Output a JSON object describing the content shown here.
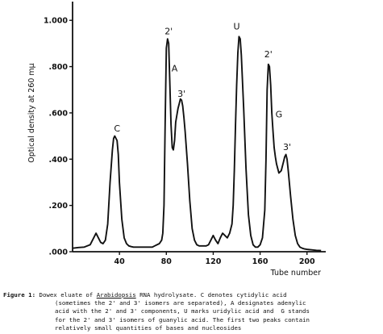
{
  "chart_data": {
    "type": "line",
    "xlabel": "Tube number",
    "ylabel": "Optical density at 260 mμ",
    "xlim": [
      0,
      216
    ],
    "ylim": [
      0,
      1.06
    ],
    "x_ticks": [
      40,
      80,
      120,
      160,
      200
    ],
    "y_ticks": [
      0.0,
      0.2,
      0.4,
      0.6,
      0.8,
      1.0
    ],
    "y_tick_labels": [
      ".000",
      ".200",
      ".400",
      ".600",
      ".800",
      "1.000"
    ],
    "grid": false,
    "series": [
      {
        "x": [
          0,
          5,
          10,
          15,
          18,
          20,
          22,
          24,
          26,
          28,
          30,
          32,
          34,
          35,
          36,
          37,
          38,
          39,
          40,
          42,
          44,
          46,
          48,
          50,
          52,
          56,
          60,
          64,
          68,
          70,
          72,
          74,
          76,
          77,
          78,
          79,
          80,
          81,
          82,
          83,
          84,
          85,
          86,
          87,
          88,
          90,
          91,
          92,
          93,
          94,
          95,
          96,
          98,
          100,
          102,
          104,
          106,
          108,
          110,
          112,
          114,
          116,
          118,
          120,
          122,
          124,
          126,
          128,
          130,
          132,
          134,
          136,
          137,
          138,
          139,
          140,
          141,
          142,
          143,
          144,
          146,
          148,
          150,
          152,
          154,
          156,
          158,
          160,
          162,
          164,
          165,
          166,
          167,
          168,
          169,
          170,
          171,
          172,
          173,
          174,
          175,
          176,
          178,
          180,
          181,
          182,
          183,
          184,
          186,
          188,
          190,
          192,
          194,
          196,
          198,
          200,
          204,
          208,
          212
        ],
        "y": [
          0.015,
          0.018,
          0.02,
          0.03,
          0.06,
          0.08,
          0.06,
          0.04,
          0.035,
          0.05,
          0.12,
          0.3,
          0.44,
          0.49,
          0.5,
          0.49,
          0.48,
          0.42,
          0.3,
          0.14,
          0.06,
          0.035,
          0.025,
          0.022,
          0.02,
          0.02,
          0.02,
          0.02,
          0.02,
          0.025,
          0.03,
          0.035,
          0.05,
          0.08,
          0.2,
          0.55,
          0.88,
          0.92,
          0.9,
          0.72,
          0.55,
          0.45,
          0.44,
          0.48,
          0.56,
          0.62,
          0.64,
          0.66,
          0.655,
          0.63,
          0.58,
          0.52,
          0.38,
          0.22,
          0.1,
          0.05,
          0.03,
          0.025,
          0.025,
          0.025,
          0.025,
          0.03,
          0.05,
          0.07,
          0.05,
          0.035,
          0.06,
          0.08,
          0.07,
          0.06,
          0.08,
          0.12,
          0.2,
          0.35,
          0.55,
          0.72,
          0.86,
          0.93,
          0.92,
          0.85,
          0.62,
          0.36,
          0.16,
          0.07,
          0.03,
          0.02,
          0.02,
          0.03,
          0.06,
          0.18,
          0.4,
          0.7,
          0.81,
          0.8,
          0.72,
          0.6,
          0.52,
          0.45,
          0.41,
          0.38,
          0.36,
          0.34,
          0.35,
          0.39,
          0.41,
          0.42,
          0.4,
          0.35,
          0.24,
          0.14,
          0.07,
          0.035,
          0.02,
          0.015,
          0.012,
          0.01,
          0.008,
          0.006,
          0.005
        ]
      }
    ],
    "annotations": [
      {
        "text": "C",
        "x": 38,
        "y": 0.52
      },
      {
        "text": "2'",
        "x": 82,
        "y": 0.94
      },
      {
        "text": "A",
        "x": 87,
        "y": 0.78
      },
      {
        "text": "3'",
        "x": 93,
        "y": 0.67
      },
      {
        "text": "U",
        "x": 140,
        "y": 0.96
      },
      {
        "text": "2'",
        "x": 167,
        "y": 0.84
      },
      {
        "text": "G",
        "x": 176,
        "y": 0.58
      },
      {
        "text": "3'",
        "x": 183,
        "y": 0.44
      }
    ]
  },
  "caption": {
    "label": "Figure 1:",
    "line1a": "Dowex eluate of ",
    "line1_emph": "Arabidopsis",
    "line1b": " RNA hydrolysate. C denotes cytidylic acid",
    "line2": "(sometimes the 2' and 3' isomers are separated), A designates adenylic",
    "line3": "acid with the 2' and 3' components, U marks uridylic acid and  G stands",
    "line4": "for the 2' and 3' isomers of guanylic acid. The first two peaks contain",
    "line5": "relatively small quantities of bases and nucleosides"
  }
}
